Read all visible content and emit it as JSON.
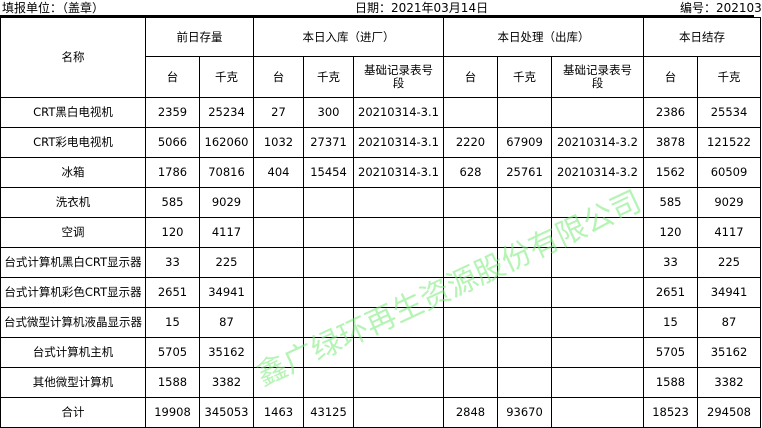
{
  "header": {
    "unit_label": "填报单位：（盖章）",
    "date_label": "日期：2021年03月14日",
    "number_label": "编号：202103"
  },
  "columns": {
    "name": "名称",
    "prev": "前日存量",
    "in": "本日入库（进厂）",
    "out": "本日处理（出库）",
    "stock": "本日结存",
    "unit": "台",
    "kg": "千克",
    "record": "基础记录表号段"
  },
  "rows": [
    [
      "CRT黑白电视机",
      "2359",
      "25234",
      "27",
      "300",
      "20210314-3.1",
      "",
      "",
      "",
      "2386",
      "25534"
    ],
    [
      "CRT彩电电视机",
      "5066",
      "162060",
      "1032",
      "27371",
      "20210314-3.1",
      "2220",
      "67909",
      "20210314-3.2",
      "3878",
      "121522"
    ],
    [
      "冰箱",
      "1786",
      "70816",
      "404",
      "15454",
      "20210314-3.1",
      "628",
      "25761",
      "20210314-3.2",
      "1562",
      "60509"
    ],
    [
      "洗衣机",
      "585",
      "9029",
      "",
      "",
      "",
      "",
      "",
      "",
      "585",
      "9029"
    ],
    [
      "空调",
      "120",
      "4117",
      "",
      "",
      "",
      "",
      "",
      "",
      "120",
      "4117"
    ],
    [
      "台式计算机黑白CRT显示器",
      "33",
      "225",
      "",
      "",
      "",
      "",
      "",
      "",
      "33",
      "225"
    ],
    [
      "台式计算机彩色CRT显示器",
      "2651",
      "34941",
      "",
      "",
      "",
      "",
      "",
      "",
      "2651",
      "34941"
    ],
    [
      "台式微型计算机液晶显示器",
      "15",
      "87",
      "",
      "",
      "",
      "",
      "",
      "",
      "15",
      "87"
    ],
    [
      "台式计算机主机",
      "5705",
      "35162",
      "",
      "",
      "",
      "",
      "",
      "",
      "5705",
      "35162"
    ],
    [
      "其他微型计算机",
      "1588",
      "3382",
      "",
      "",
      "",
      "",
      "",
      "",
      "1588",
      "3382"
    ],
    [
      "合计",
      "19908",
      "345053",
      "1463",
      "43125",
      "",
      "2848",
      "93670",
      "",
      "18523",
      "294508"
    ]
  ],
  "watermark": "鑫广绿环再生资源股份有限公司"
}
